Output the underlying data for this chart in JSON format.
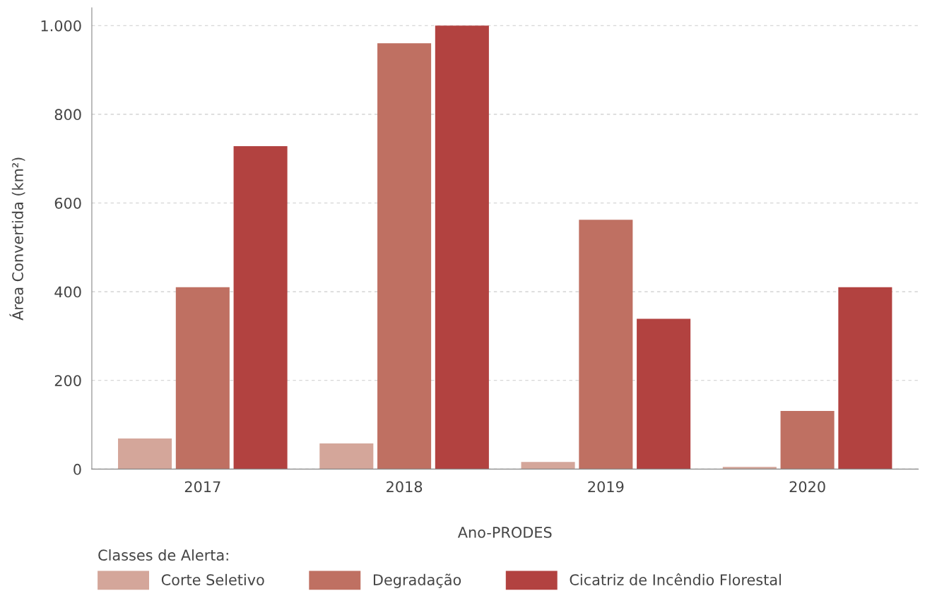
{
  "chart_data": {
    "type": "bar",
    "xlabel": "Ano-PRODES",
    "ylabel": "Área Convertida (km²)",
    "legend_title": "Classes de Alerta:",
    "categories": [
      "2017",
      "2018",
      "2019",
      "2020"
    ],
    "series": [
      {
        "name": "Corte Seletivo",
        "color": "#d4a69a",
        "values": [
          69,
          58,
          16,
          5
        ]
      },
      {
        "name": "Degradação",
        "color": "#bf7062",
        "values": [
          410,
          960,
          562,
          131
        ]
      },
      {
        "name": "Cicatriz de Incêndio Florestal",
        "color": "#b24240",
        "values": [
          728,
          1000,
          339,
          410
        ]
      }
    ],
    "ylim": [
      0,
      1040
    ],
    "yticks": [
      0,
      200,
      400,
      600,
      800,
      {
        "value": 1000,
        "label": "1.000"
      }
    ],
    "grid": "y",
    "legend": "bottom left"
  }
}
